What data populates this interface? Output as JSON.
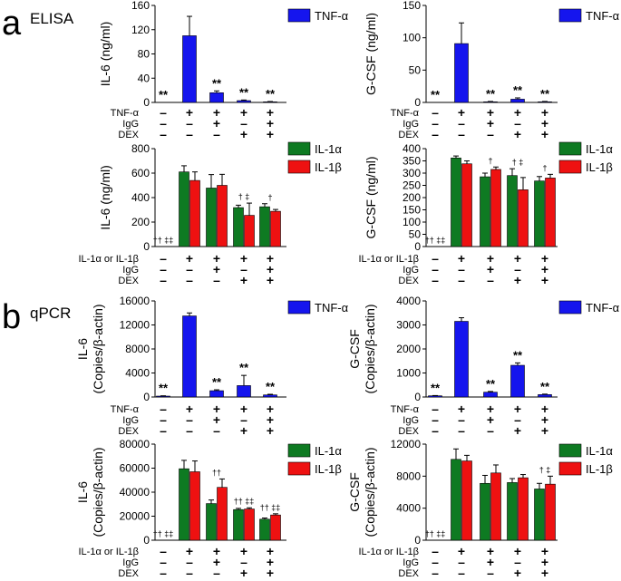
{
  "section_a": {
    "letter": "a",
    "title": "ELISA"
  },
  "section_b": {
    "letter": "b",
    "title": "qPCR"
  },
  "colors": {
    "tnf": "#1515ee",
    "il1a": "#0e7a22",
    "il1b": "#ee1111"
  },
  "chart_data": [
    {
      "type": "bar",
      "panel": "a-top-left",
      "ylabel": "IL-6 (ng/ml)",
      "ylim": [
        0,
        160
      ],
      "yticks": [
        "0",
        "40",
        "80",
        "120",
        "160"
      ],
      "legend": [
        "TNF-α"
      ],
      "series": [
        {
          "name": "TNF-α",
          "color_key": "tnf",
          "values": [
            0,
            110,
            16,
            3,
            1
          ],
          "errors": [
            0,
            32,
            3,
            1,
            0.5
          ]
        }
      ],
      "annotations": [
        "**",
        "",
        "**",
        "**",
        "**"
      ],
      "conditions": [
        {
          "label": "TNF-α",
          "signs": [
            "–",
            "+",
            "+",
            "+",
            "+"
          ]
        },
        {
          "label": "IgG",
          "signs": [
            "–",
            "–",
            "+",
            "–",
            "+"
          ]
        },
        {
          "label": "DEX",
          "signs": [
            "–",
            "–",
            "–",
            "+",
            "+"
          ]
        }
      ]
    },
    {
      "type": "bar",
      "panel": "a-top-right",
      "ylabel": "G-CSF (ng/ml)",
      "ylim": [
        0,
        150
      ],
      "yticks": [
        "0",
        "50",
        "100",
        "150"
      ],
      "legend": [
        "TNF-α"
      ],
      "series": [
        {
          "name": "TNF-α",
          "color_key": "tnf",
          "values": [
            0,
            91,
            1,
            5,
            1
          ],
          "errors": [
            0,
            32,
            0.5,
            2,
            0.5
          ]
        }
      ],
      "annotations": [
        "**",
        "",
        "**",
        "**",
        "**"
      ],
      "conditions": [
        {
          "label": "TNF-α",
          "signs": [
            "–",
            "+",
            "+",
            "+",
            "+"
          ]
        },
        {
          "label": "IgG",
          "signs": [
            "–",
            "–",
            "+",
            "–",
            "+"
          ]
        },
        {
          "label": "DEX",
          "signs": [
            "–",
            "–",
            "–",
            "+",
            "+"
          ]
        }
      ]
    },
    {
      "type": "bar",
      "panel": "a-bottom-left",
      "ylabel": "IL-6 (ng/ml)",
      "ylim": [
        0,
        800
      ],
      "yticks": [
        "0",
        "200",
        "400",
        "600",
        "800"
      ],
      "legend": [
        "IL-1α",
        "IL-1β"
      ],
      "series": [
        {
          "name": "IL-1α",
          "color_key": "il1a",
          "values": [
            0,
            610,
            478,
            318,
            325
          ],
          "errors": [
            0,
            50,
            110,
            20,
            25
          ]
        },
        {
          "name": "IL-1β",
          "color_key": "il1b",
          "values": [
            0,
            540,
            500,
            255,
            288
          ],
          "errors": [
            0,
            70,
            90,
            100,
            15
          ]
        }
      ],
      "annotations": [
        "†† ‡‡",
        "",
        "",
        "† ‡",
        "†"
      ],
      "conditions": [
        {
          "label": "IL-1α or IL-1β",
          "signs": [
            "–",
            "+",
            "+",
            "+",
            "+"
          ]
        },
        {
          "label": "IgG",
          "signs": [
            "–",
            "–",
            "+",
            "–",
            "+"
          ]
        },
        {
          "label": "DEX",
          "signs": [
            "–",
            "–",
            "–",
            "+",
            "+"
          ]
        }
      ]
    },
    {
      "type": "bar",
      "panel": "a-bottom-right",
      "ylabel": "G-CSF (ng/ml)",
      "ylim": [
        0,
        400
      ],
      "yticks": [
        "0",
        "50",
        "100",
        "150",
        "200",
        "250",
        "300",
        "350",
        "400"
      ],
      "legend": [
        "IL-1α",
        "IL-1β"
      ],
      "series": [
        {
          "name": "IL-1α",
          "color_key": "il1a",
          "values": [
            0,
            362,
            285,
            290,
            268
          ],
          "errors": [
            0,
            8,
            15,
            28,
            18
          ]
        },
        {
          "name": "IL-1β",
          "color_key": "il1b",
          "values": [
            0,
            338,
            315,
            232,
            280
          ],
          "errors": [
            0,
            12,
            10,
            50,
            15
          ]
        }
      ],
      "annotations": [
        "†† ‡‡",
        "",
        "†",
        "† ‡",
        "†"
      ],
      "conditions": [
        {
          "label": "IL-1α or IL-1β",
          "signs": [
            "–",
            "+",
            "+",
            "+",
            "+"
          ]
        },
        {
          "label": "IgG",
          "signs": [
            "–",
            "–",
            "+",
            "–",
            "+"
          ]
        },
        {
          "label": "DEX",
          "signs": [
            "–",
            "–",
            "–",
            "+",
            "+"
          ]
        }
      ]
    },
    {
      "type": "bar",
      "panel": "b-top-left",
      "ylabel": "IL-6",
      "ylabel2": "(Copies/β-actin)",
      "ylim": [
        0,
        16000
      ],
      "yticks": [
        "0",
        "4000",
        "8000",
        "12000",
        "16000"
      ],
      "legend": [
        "TNF-α"
      ],
      "series": [
        {
          "name": "TNF-α",
          "color_key": "tnf",
          "values": [
            150,
            13500,
            1050,
            1900,
            350
          ],
          "errors": [
            50,
            500,
            150,
            1700,
            100
          ]
        }
      ],
      "annotations": [
        "**",
        "",
        "**",
        "**",
        "**"
      ],
      "conditions": [
        {
          "label": "TNF-α",
          "signs": [
            "–",
            "+",
            "+",
            "+",
            "+"
          ]
        },
        {
          "label": "IgG",
          "signs": [
            "–",
            "–",
            "+",
            "–",
            "+"
          ]
        },
        {
          "label": "DEX",
          "signs": [
            "–",
            "–",
            "–",
            "+",
            "+"
          ]
        }
      ]
    },
    {
      "type": "bar",
      "panel": "b-top-right",
      "ylabel": "G-CSF",
      "ylabel2": "(Copies/β-actin)",
      "ylim": [
        0,
        4000
      ],
      "yticks": [
        "0",
        "1000",
        "2000",
        "3000",
        "4000"
      ],
      "legend": [
        "TNF-α"
      ],
      "series": [
        {
          "name": "TNF-α",
          "color_key": "tnf",
          "values": [
            50,
            3150,
            200,
            1320,
            100
          ],
          "errors": [
            10,
            150,
            30,
            100,
            20
          ]
        }
      ],
      "annotations": [
        "**",
        "",
        "**",
        "**",
        "**"
      ],
      "conditions": [
        {
          "label": "TNF-α",
          "signs": [
            "–",
            "+",
            "+",
            "+",
            "+"
          ]
        },
        {
          "label": "IgG",
          "signs": [
            "–",
            "–",
            "+",
            "–",
            "+"
          ]
        },
        {
          "label": "DEX",
          "signs": [
            "–",
            "–",
            "–",
            "+",
            "+"
          ]
        }
      ]
    },
    {
      "type": "bar",
      "panel": "b-bottom-left",
      "ylabel": "IL-6",
      "ylabel2": "(Copies/β-actin)",
      "ylim": [
        0,
        80000
      ],
      "yticks": [
        "0",
        "20000",
        "40000",
        "60000",
        "80000"
      ],
      "legend": [
        "IL-1α",
        "IL-1β"
      ],
      "series": [
        {
          "name": "IL-1α",
          "color_key": "il1a",
          "values": [
            0,
            59500,
            30500,
            25500,
            17500
          ],
          "errors": [
            0,
            7000,
            3000,
            1000,
            1000
          ]
        },
        {
          "name": "IL-1β",
          "color_key": "il1b",
          "values": [
            0,
            57000,
            44000,
            26000,
            21000
          ],
          "errors": [
            0,
            9000,
            7000,
            1000,
            1000
          ]
        }
      ],
      "annotations": [
        "†† ‡‡",
        "",
        "††",
        "†† ‡‡",
        "†† ‡‡"
      ],
      "conditions": [
        {
          "label": "IL-1α or IL-1β",
          "signs": [
            "–",
            "+",
            "+",
            "+",
            "+"
          ]
        },
        {
          "label": "IgG",
          "signs": [
            "–",
            "–",
            "+",
            "–",
            "+"
          ]
        },
        {
          "label": "DEX",
          "signs": [
            "–",
            "–",
            "–",
            "+",
            "+"
          ]
        }
      ]
    },
    {
      "type": "bar",
      "panel": "b-bottom-right",
      "ylabel": "G-CSF",
      "ylabel2": "(Copies/β-actin)",
      "ylim": [
        0,
        12000
      ],
      "yticks": [
        "0",
        "4000",
        "8000",
        "12000"
      ],
      "legend": [
        "IL-1α",
        "IL-1β"
      ],
      "series": [
        {
          "name": "IL-1α",
          "color_key": "il1a",
          "values": [
            0,
            10100,
            7100,
            7200,
            6400
          ],
          "errors": [
            0,
            1300,
            1000,
            500,
            700
          ]
        },
        {
          "name": "IL-1β",
          "color_key": "il1b",
          "values": [
            0,
            9900,
            8400,
            7800,
            7000
          ],
          "errors": [
            0,
            700,
            1000,
            400,
            1000
          ]
        }
      ],
      "annotations": [
        "†† ‡‡",
        "",
        "",
        "",
        "† ‡"
      ],
      "conditions": [
        {
          "label": "IL-1α or IL-1β",
          "signs": [
            "–",
            "+",
            "+",
            "+",
            "+"
          ]
        },
        {
          "label": "IgG",
          "signs": [
            "–",
            "–",
            "+",
            "–",
            "+"
          ]
        },
        {
          "label": "DEX",
          "signs": [
            "–",
            "–",
            "–",
            "+",
            "+"
          ]
        }
      ]
    }
  ]
}
